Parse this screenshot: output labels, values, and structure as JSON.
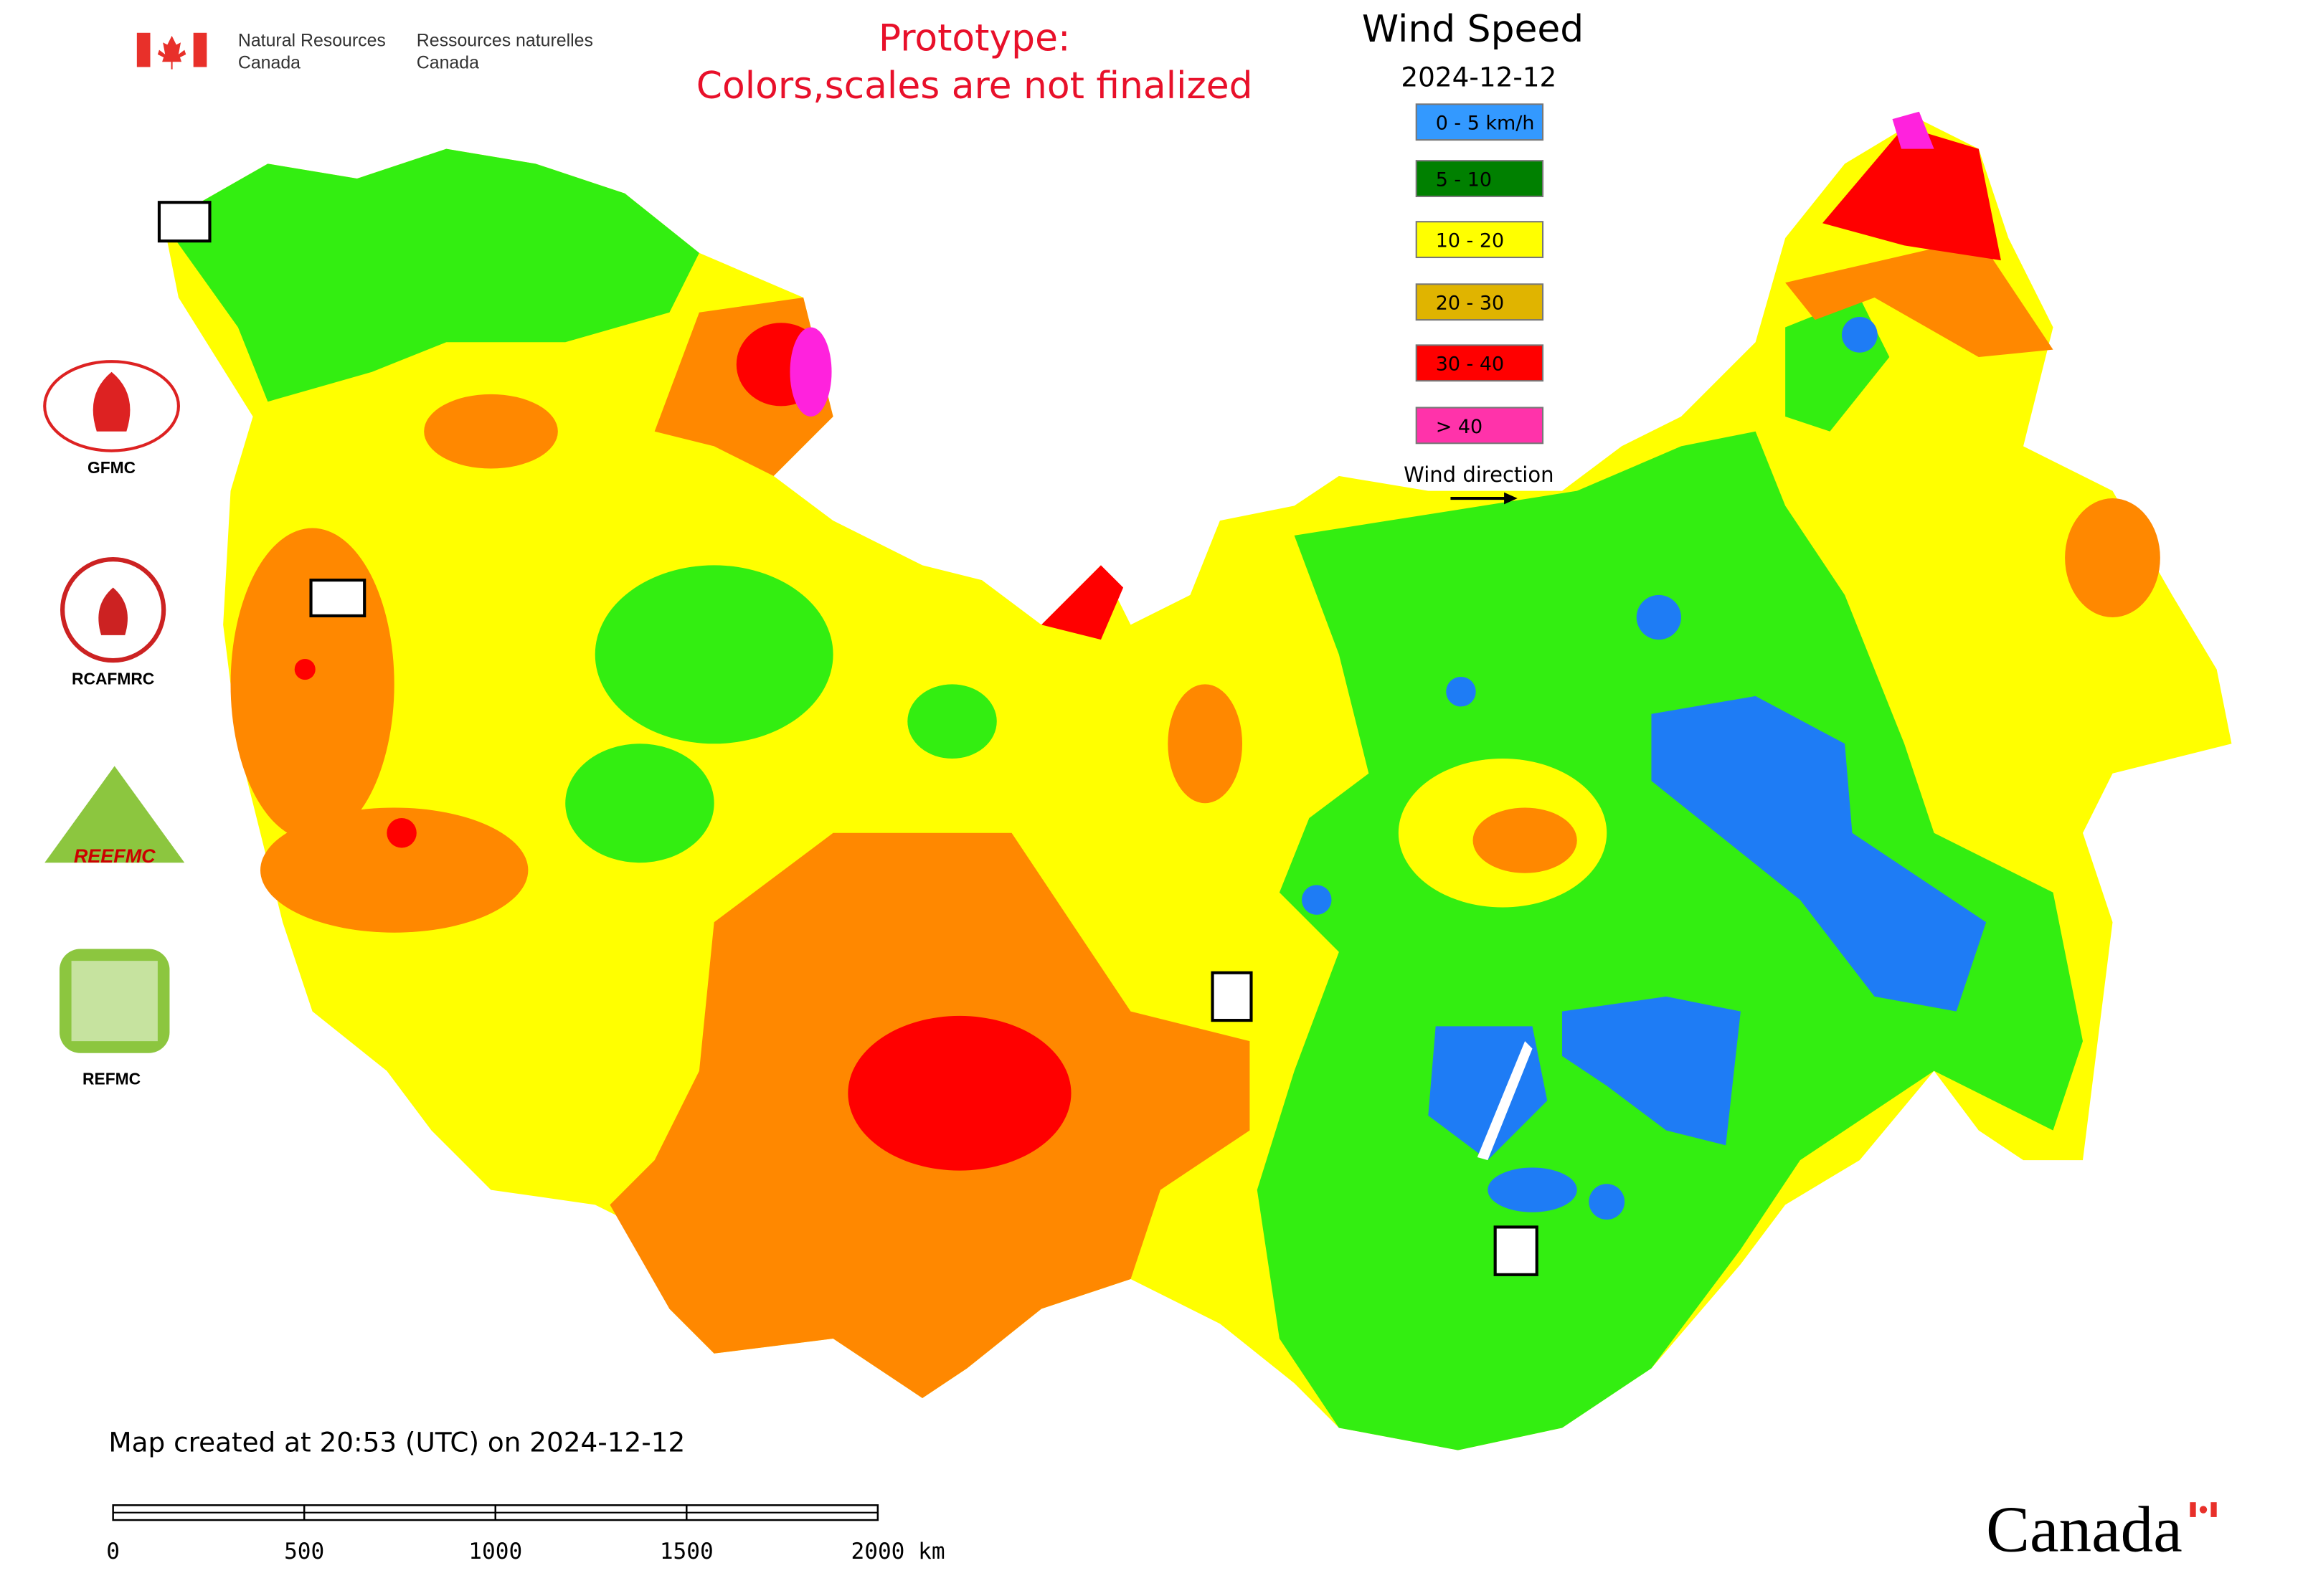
{
  "header": {
    "department_en": [
      "Natural Resources",
      "Canada"
    ],
    "department_fr": [
      "Ressources naturelles",
      "Canada"
    ],
    "notice": [
      "Prototype:",
      "Colors,scales are not finalized"
    ]
  },
  "legend": {
    "title": "Wind Speed",
    "date": "2024-12-12",
    "items": [
      {
        "label": "0 - 5 km/h",
        "color": "#3399ff"
      },
      {
        "label": "5 - 10",
        "color": "#008000"
      },
      {
        "label": "10 - 20",
        "color": "#ffff00"
      },
      {
        "label": "20 - 30",
        "color": "#e0b400"
      },
      {
        "label": "30 - 40",
        "color": "#ff0000"
      },
      {
        "label": "> 40",
        "color": "#ff33aa"
      }
    ],
    "direction_label": "Wind direction"
  },
  "logos": [
    "GFMC",
    "RCAFMRC",
    "REEFMC",
    "REFMC"
  ],
  "footer": {
    "created": "Map created at 20:53 (UTC) on 2024-12-12",
    "scale_labels": [
      "0",
      "500",
      "1000",
      "1500",
      "2000 km"
    ],
    "wordmark": "Canada"
  }
}
